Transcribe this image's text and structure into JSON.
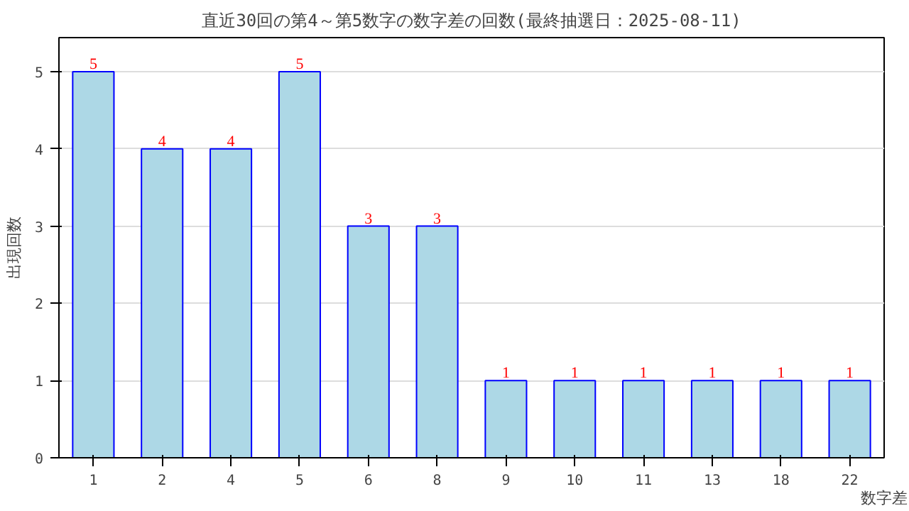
{
  "chart_data": {
    "type": "bar",
    "title": "直近30回の第4～第5数字の数字差の回数(最終抽選日：2025-08-11)",
    "xlabel": "数字差",
    "ylabel": "出現回数",
    "categories": [
      "1",
      "2",
      "4",
      "5",
      "6",
      "8",
      "9",
      "10",
      "11",
      "13",
      "18",
      "22"
    ],
    "values": [
      5,
      4,
      4,
      5,
      3,
      3,
      1,
      1,
      1,
      1,
      1,
      1
    ],
    "color": "#add8e6",
    "ylim": [
      0,
      5.44
    ],
    "yticks": [
      0,
      1,
      2,
      3,
      4,
      5
    ],
    "grid": "y",
    "data_labels": true
  }
}
